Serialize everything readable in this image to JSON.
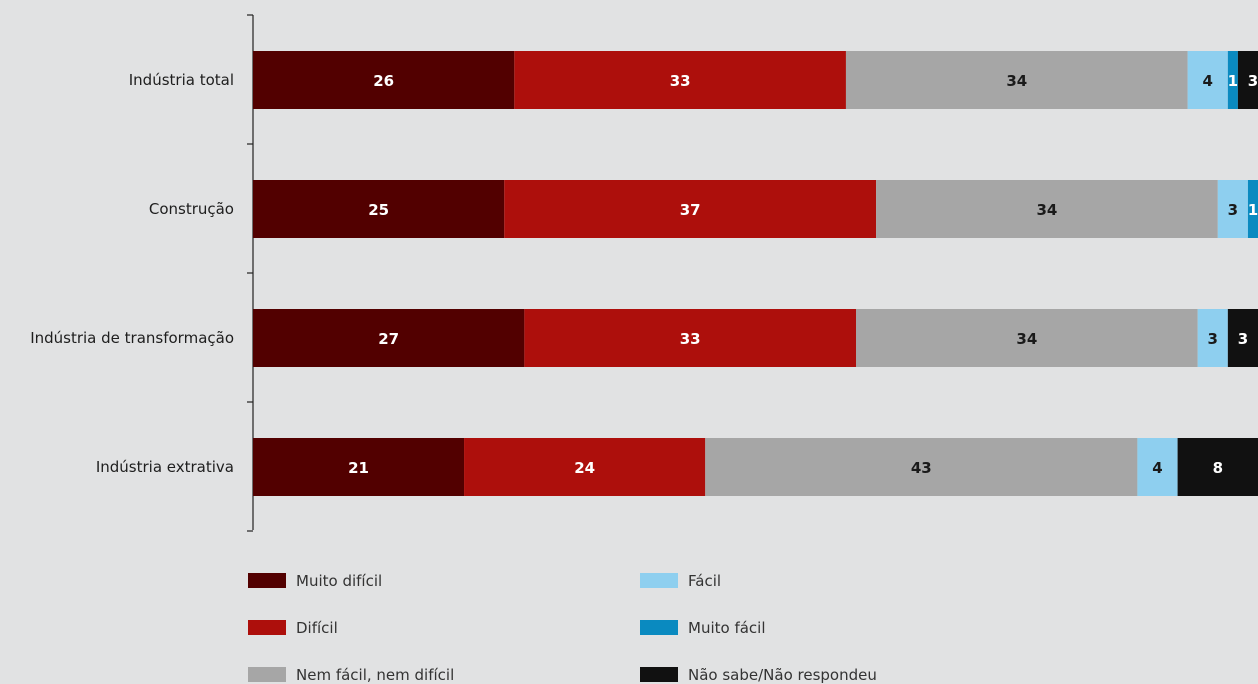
{
  "chart_data": {
    "type": "bar",
    "orientation": "horizontal",
    "stacked": true,
    "categories": [
      "Indústria total",
      "Construção",
      "Indústria de transformação",
      "Indústria extrativa"
    ],
    "series": [
      {
        "name": "Muito difícil",
        "color": "#520000",
        "values": [
          26,
          25,
          27,
          21
        ],
        "labels": [
          "26",
          "25",
          "27",
          "21"
        ]
      },
      {
        "name": "Difícil",
        "color": "#ad0f0c",
        "values": [
          33,
          37,
          33,
          24
        ],
        "labels": [
          "33",
          "37",
          "33",
          "24"
        ]
      },
      {
        "name": "Nem fácil, nem difícil",
        "color": "#a6a6a6",
        "values": [
          34,
          34,
          34,
          43
        ],
        "labels": [
          "34",
          "34",
          "34",
          "43"
        ]
      },
      {
        "name": "Fácil",
        "color": "#8ecfef",
        "values": [
          4,
          3,
          3,
          4
        ],
        "labels": [
          "4",
          "3",
          "3",
          "4"
        ]
      },
      {
        "name": "Muito fácil",
        "color": "#0a8ac0",
        "values": [
          1,
          1,
          0,
          0
        ],
        "labels": [
          "1",
          "1",
          "",
          ""
        ]
      },
      {
        "name": "Não sabe/Não respondeu",
        "color": "#111111",
        "values": [
          3,
          0,
          3,
          8
        ],
        "labels": [
          "3",
          "",
          "3",
          "8"
        ]
      }
    ],
    "xlim": [
      0,
      100
    ],
    "grid": false,
    "legend_position": "bottom"
  }
}
